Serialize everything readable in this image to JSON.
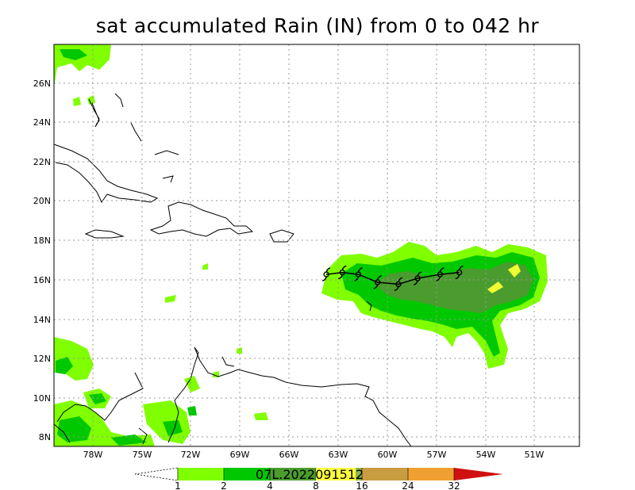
{
  "title": "sat accumulated Rain (IN) from 0 to 042 hr",
  "stamp": {
    "prefix": "07L.202",
    "highlight": "20915",
    "suffix": "12"
  },
  "lon_labels": [
    "78W",
    "75W",
    "72W",
    "69W",
    "66W",
    "63W",
    "60W",
    "57W",
    "54W",
    "51W"
  ],
  "lat_labels": [
    "26N",
    "24N",
    "22N",
    "20N",
    "18N",
    "16N",
    "14N",
    "12N",
    "10N",
    "8N"
  ],
  "colorbar": {
    "labels": [
      "1",
      "2",
      "4",
      "8",
      "16",
      "24",
      "32"
    ],
    "colors": [
      "#ffffff",
      "#80ff00",
      "#00c800",
      "#4a9c2e",
      "#c89c40",
      "#f0a030",
      "#d01010"
    ]
  },
  "storm_symbol": "tropical-storm-icon",
  "track": [
    {
      "lon": -63.0,
      "lat": 16.3
    },
    {
      "lon": -62.0,
      "lat": 16.4
    },
    {
      "lon": -61.0,
      "lat": 16.3
    },
    {
      "lon": -59.8,
      "lat": 15.9
    },
    {
      "lon": -58.5,
      "lat": 15.8
    },
    {
      "lon": -57.3,
      "lat": 16.1
    },
    {
      "lon": -55.9,
      "lat": 16.3
    },
    {
      "lon": -54.7,
      "lat": 16.4
    }
  ]
}
